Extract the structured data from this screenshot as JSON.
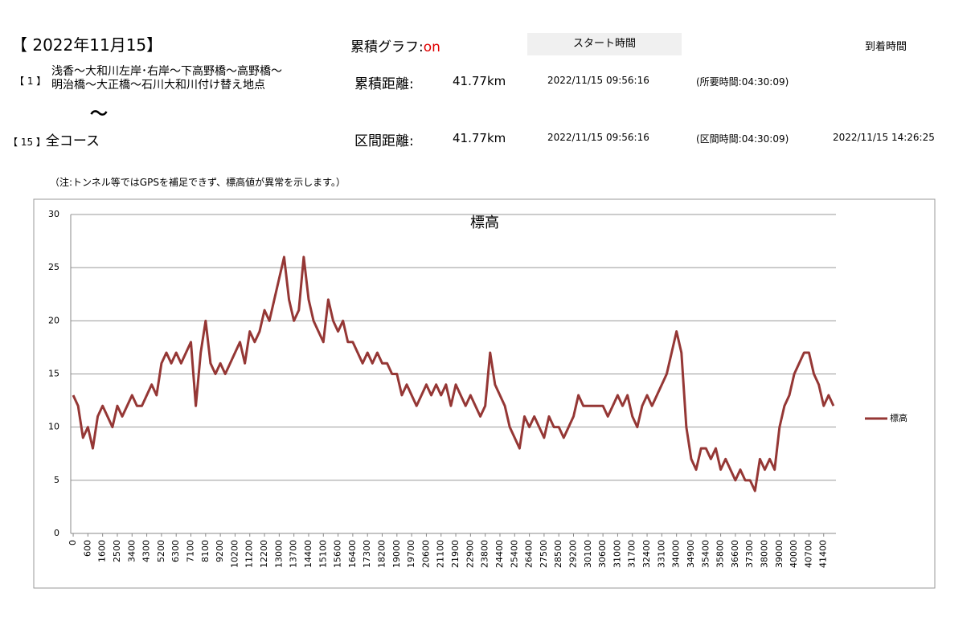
{
  "header": {
    "date": "【 2022年11月15】",
    "graph_label": "累積グラフ:",
    "graph_state": "on",
    "start_button": "スタート時間",
    "arrival_label": "到着時間"
  },
  "route": {
    "from_index": "【 1 】",
    "from_line1": "浅香～大和川左岸･右岸～下高野橋～高野橋～",
    "from_line2": "明治橋～大正橋～石川大和川付け替え地点",
    "tilde": "～",
    "to_index": "【 15 】",
    "to_name": "全コース"
  },
  "rows": [
    {
      "label": "累積距離:",
      "distance": "41.77km",
      "start": "2022/11/15 09:56:16",
      "duration": "(所要時間:04:30:09)"
    },
    {
      "label": "区間距離:",
      "distance": "41.77km",
      "start": "2022/11/15 09:56:16",
      "duration": "(区間時間:04:30:09)",
      "end": "2022/11/15 14:26:25"
    }
  ],
  "note": "（注:トンネル等ではGPSを補足できず、標高値が異常を示します。）",
  "chart_data": {
    "type": "line",
    "title": "標高",
    "categories": [
      "0",
      null,
      null,
      "600",
      null,
      null,
      "1600",
      null,
      null,
      "2500",
      null,
      null,
      "3400",
      null,
      null,
      "4300",
      null,
      null,
      "5200",
      null,
      null,
      "6300",
      null,
      null,
      "7100",
      null,
      null,
      "8100",
      null,
      null,
      "9200",
      null,
      null,
      "10200",
      null,
      null,
      "11200",
      null,
      null,
      "12200",
      null,
      null,
      "13000",
      null,
      null,
      "13700",
      null,
      null,
      "14400",
      null,
      null,
      "15100",
      null,
      null,
      "15600",
      null,
      null,
      "16400",
      null,
      null,
      "17300",
      null,
      null,
      "18200",
      null,
      null,
      "19000",
      null,
      null,
      "19700",
      null,
      null,
      "20600",
      null,
      null,
      "21100",
      null,
      null,
      "21900",
      null,
      null,
      "22900",
      null,
      null,
      "23800",
      null,
      null,
      "24400",
      null,
      null,
      "25400",
      null,
      null,
      "26400",
      null,
      null,
      "27500",
      null,
      null,
      "28500",
      null,
      null,
      "29200",
      null,
      null,
      "30100",
      null,
      null,
      "30600",
      null,
      null,
      "31000",
      null,
      null,
      "31700",
      null,
      null,
      "32400",
      null,
      null,
      "33100",
      null,
      null,
      "34000",
      null,
      null,
      "34900",
      null,
      null,
      "35400",
      null,
      null,
      "35800",
      null,
      null,
      "36600",
      null,
      null,
      "37300",
      null,
      null,
      "38000",
      null,
      null,
      "39000",
      null,
      null,
      "40000",
      null,
      null,
      "40700",
      null,
      null,
      "41400",
      null,
      null
    ],
    "series": [
      {
        "name": "標高",
        "color": "#953735",
        "values": [
          13,
          12,
          9,
          10,
          8,
          11,
          12,
          11,
          10,
          12,
          11,
          12,
          13,
          12,
          12,
          13,
          14,
          13,
          16,
          17,
          16,
          17,
          16,
          17,
          18,
          12,
          17,
          20,
          16,
          15,
          16,
          15,
          16,
          17,
          18,
          16,
          19,
          18,
          19,
          21,
          20,
          22,
          24,
          26,
          22,
          20,
          21,
          26,
          22,
          20,
          19,
          18,
          22,
          20,
          19,
          20,
          18,
          18,
          17,
          16,
          17,
          16,
          17,
          16,
          16,
          15,
          15,
          13,
          14,
          13,
          12,
          13,
          14,
          13,
          14,
          13,
          14,
          12,
          14,
          13,
          12,
          13,
          12,
          11,
          12,
          17,
          14,
          13,
          12,
          10,
          9,
          8,
          11,
          10,
          11,
          10,
          9,
          11,
          10,
          10,
          9,
          10,
          11,
          13,
          12,
          12,
          12,
          12,
          12,
          11,
          12,
          13,
          12,
          13,
          11,
          10,
          12,
          13,
          12,
          13,
          14,
          15,
          17,
          19,
          17,
          10,
          7,
          6,
          8,
          8,
          7,
          8,
          6,
          7,
          6,
          5,
          6,
          5,
          5,
          4,
          7,
          6,
          7,
          6,
          10,
          12,
          13,
          15,
          16,
          17,
          17,
          15,
          14,
          12,
          13,
          12
        ]
      }
    ],
    "ylim": [
      0,
      30
    ],
    "yticks": [
      0,
      5,
      10,
      15,
      20,
      25,
      30
    ],
    "grid": true,
    "legend": "right"
  }
}
